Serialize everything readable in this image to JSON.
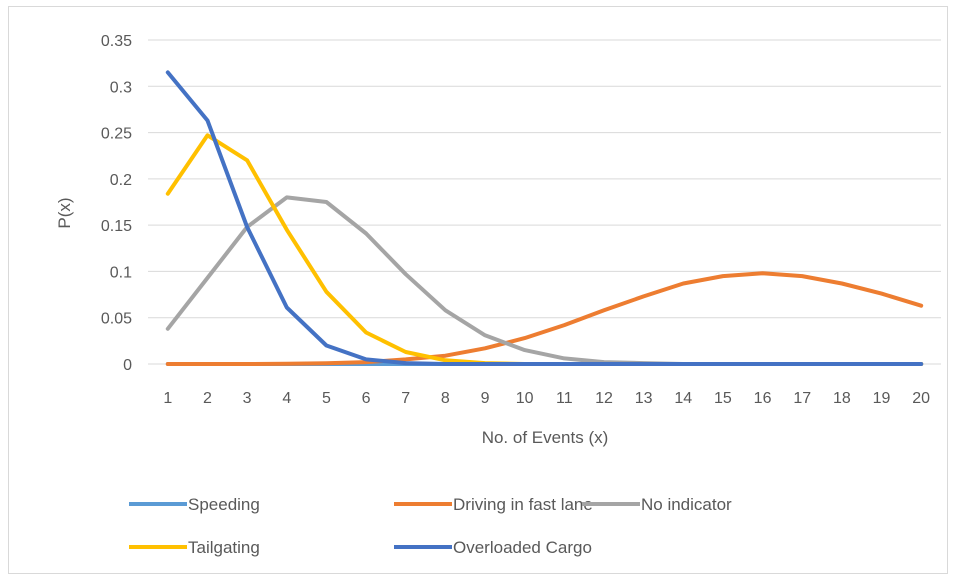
{
  "chart_data": {
    "type": "line",
    "title": "",
    "xlabel": "No. of Events (x)",
    "ylabel": "P(x)",
    "x": [
      1,
      2,
      3,
      4,
      5,
      6,
      7,
      8,
      9,
      10,
      11,
      12,
      13,
      14,
      15,
      16,
      17,
      18,
      19,
      20
    ],
    "ylim": [
      0,
      0.35
    ],
    "yticks": [
      0,
      0.05,
      0.1,
      0.15,
      0.2,
      0.25,
      0.3,
      0.35
    ],
    "ytick_labels": [
      "0",
      "0.05",
      "0.1",
      "0.15",
      "0.2",
      "0.25",
      "0.3",
      "0.35"
    ],
    "grid": true,
    "legend_position": "bottom",
    "series": [
      {
        "name": "Speeding",
        "color": "#5b9bd5",
        "values": [
          0,
          0,
          0,
          0,
          0,
          0,
          0,
          0,
          0,
          0,
          0,
          0,
          0,
          0,
          0,
          0,
          0,
          0,
          0,
          0
        ]
      },
      {
        "name": "Driving in fast lane",
        "color": "#ed7d31",
        "values": [
          0,
          0,
          0,
          0.0003,
          0.0008,
          0.002,
          0.005,
          0.009,
          0.017,
          0.028,
          0.042,
          0.058,
          0.073,
          0.087,
          0.095,
          0.098,
          0.095,
          0.087,
          0.076,
          0.063
        ]
      },
      {
        "name": "No indicator",
        "color": "#a5a5a5",
        "values": [
          0.038,
          0.093,
          0.148,
          0.18,
          0.175,
          0.141,
          0.097,
          0.058,
          0.031,
          0.015,
          0.006,
          0.002,
          0.001,
          0,
          0,
          0,
          0,
          0,
          0,
          0
        ]
      },
      {
        "name": "Tailgating",
        "color": "#ffc000",
        "values": [
          0.184,
          0.247,
          0.22,
          0.145,
          0.078,
          0.034,
          0.013,
          0.004,
          0.001,
          0,
          0,
          0,
          0,
          0,
          0,
          0,
          0,
          0,
          0,
          0
        ]
      },
      {
        "name": "Overloaded Cargo",
        "color": "#4472c4",
        "values": [
          0.315,
          0.263,
          0.148,
          0.061,
          0.02,
          0.005,
          0.001,
          0,
          0,
          0,
          0,
          0,
          0,
          0,
          0,
          0,
          0,
          0,
          0,
          0
        ]
      }
    ]
  }
}
